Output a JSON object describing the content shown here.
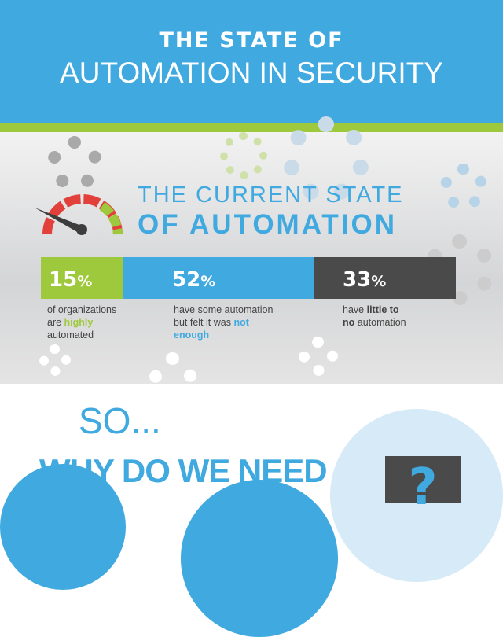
{
  "header": {
    "title_line1": "THE STATE OF",
    "title_line2": "AUTOMATION IN SECURITY"
  },
  "section": {
    "heading_line1": "THE CURRENT STATE",
    "heading_line2": "OF AUTOMATION"
  },
  "stats": [
    {
      "value": "15",
      "unit": "%",
      "text": [
        "of organizations",
        "are ",
        "highly",
        "automated"
      ],
      "color": "#9fc93c"
    },
    {
      "value": "52",
      "unit": "%",
      "text": [
        "have some automation",
        "but felt it was ",
        "not",
        "enough"
      ],
      "color": "#3fa9e0"
    },
    {
      "value": "33",
      "unit": "%",
      "text": [
        "have ",
        "little to",
        "no",
        " automation"
      ],
      "color": "#4a4a4a"
    }
  ],
  "teaser": {
    "so": "SO...",
    "question": "WHY DO WE NEED",
    "mark": "?"
  },
  "colors": {
    "blue": "#3fa9e0",
    "green": "#9fc93c",
    "dark": "#4a4a4a",
    "red": "#e2403a"
  }
}
